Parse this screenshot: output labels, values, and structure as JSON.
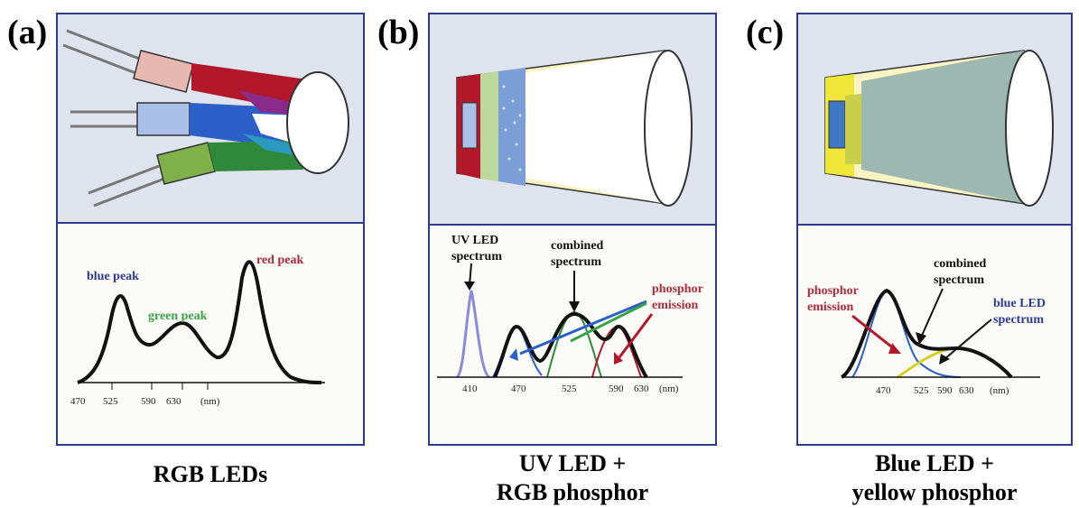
{
  "panels": [
    {
      "letter": "(a)",
      "caption_line1": "RGB LEDs",
      "caption_line2": "",
      "labels": {
        "blue": "blue peak",
        "green": "green peak",
        "red": "red peak"
      },
      "ticks": [
        "470",
        "525",
        "590",
        "630",
        "(nm)"
      ]
    },
    {
      "letter": "(b)",
      "caption_line1": "UV LED +",
      "caption_line2": "RGB phosphor",
      "labels": {
        "uv1": "UV LED",
        "uv2": "spectrum",
        "comb1": "combined",
        "comb2": "spectrum",
        "ph1": "phosphor",
        "ph2": "emission"
      },
      "ticks": [
        "410",
        "470",
        "525",
        "590",
        "630",
        "(nm)"
      ]
    },
    {
      "letter": "(c)",
      "caption_line1": "Blue LED +",
      "caption_line2": "yellow phosphor",
      "labels": {
        "ph1": "phosphor",
        "ph2": "emission",
        "comb1": "combined",
        "comb2": "spectrum",
        "blue1": "blue LED",
        "blue2": "spectrum"
      },
      "ticks": [
        "470",
        "525",
        "590",
        "630",
        "(nm)"
      ]
    }
  ],
  "colors": {
    "frame": "#2e3a8c",
    "blue_label": "#2b3a9c",
    "green_label": "#3aa246",
    "red_label": "#b22a3a"
  }
}
